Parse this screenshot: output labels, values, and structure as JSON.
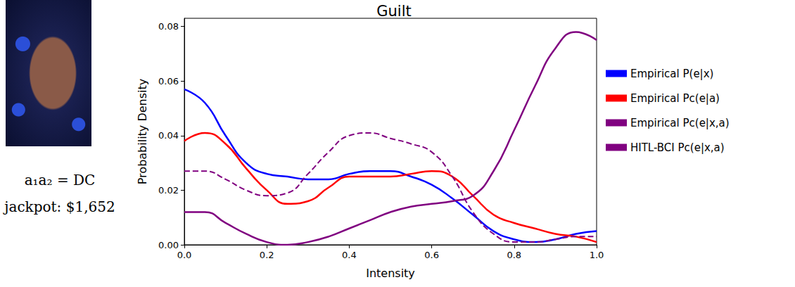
{
  "chart_data": {
    "type": "line",
    "title": "Guilt",
    "x_label": "Intensity",
    "y_label": "Probability Density",
    "annotations": [
      "a₁a₂ = DC",
      "jackpot: $1,652"
    ],
    "x": [
      0,
      0.05,
      0.1,
      0.15,
      0.2,
      0.25,
      0.3,
      0.35,
      0.4,
      0.45,
      0.5,
      0.55,
      0.6,
      0.65,
      0.7,
      0.75,
      0.8,
      0.85,
      0.9,
      0.95,
      1.0
    ],
    "series": [
      {
        "name": "Empirical P(e|x)",
        "color": "#0000ff",
        "line_style": "solid",
        "values": [
          0.057,
          0.052,
          0.04,
          0.03,
          0.026,
          0.025,
          0.024,
          0.024,
          0.026,
          0.027,
          0.027,
          0.025,
          0.022,
          0.017,
          0.011,
          0.005,
          0.002,
          0.001,
          0.002,
          0.004,
          0.005
        ]
      },
      {
        "name": "Empirical Pc(e|a)",
        "color": "#ff0000",
        "line_style": "solid",
        "values": [
          0.038,
          0.041,
          0.037,
          0.028,
          0.02,
          0.015,
          0.016,
          0.021,
          0.025,
          0.025,
          0.025,
          0.026,
          0.027,
          0.025,
          0.018,
          0.011,
          0.008,
          0.006,
          0.004,
          0.003,
          0.001
        ]
      },
      {
        "name": "Empirical Pc(e|x,a)",
        "color": "#800080",
        "line_style": "solid",
        "values": [
          0.012,
          0.012,
          0.008,
          0.004,
          0.001,
          0.0,
          0.001,
          0.003,
          0.006,
          0.009,
          0.012,
          0.014,
          0.015,
          0.016,
          0.018,
          0.027,
          0.042,
          0.058,
          0.072,
          0.078,
          0.075
        ]
      },
      {
        "name": "HITL-BCI Pc(e|x,a)",
        "color": "#800080",
        "line_style": "dashed",
        "values": [
          0.027,
          0.027,
          0.024,
          0.02,
          0.018,
          0.019,
          0.026,
          0.034,
          0.04,
          0.041,
          0.039,
          0.037,
          0.034,
          0.025,
          0.012,
          0.004,
          0.001,
          0.001,
          0.002,
          0.003,
          0.003
        ]
      }
    ],
    "xlim": [
      0,
      1
    ],
    "xticks": [
      {
        "value": 0,
        "label": "0.0"
      },
      0.2,
      0.4,
      0.6,
      0.8,
      {
        "value": 1,
        "label": "1.0"
      }
    ],
    "ylim": [
      0,
      0.083
    ],
    "yticks": [
      {
        "value": 0,
        "label": "0.00"
      },
      0.02,
      0.04,
      0.06,
      0.08
    ],
    "legend": "right",
    "grid": false
  }
}
